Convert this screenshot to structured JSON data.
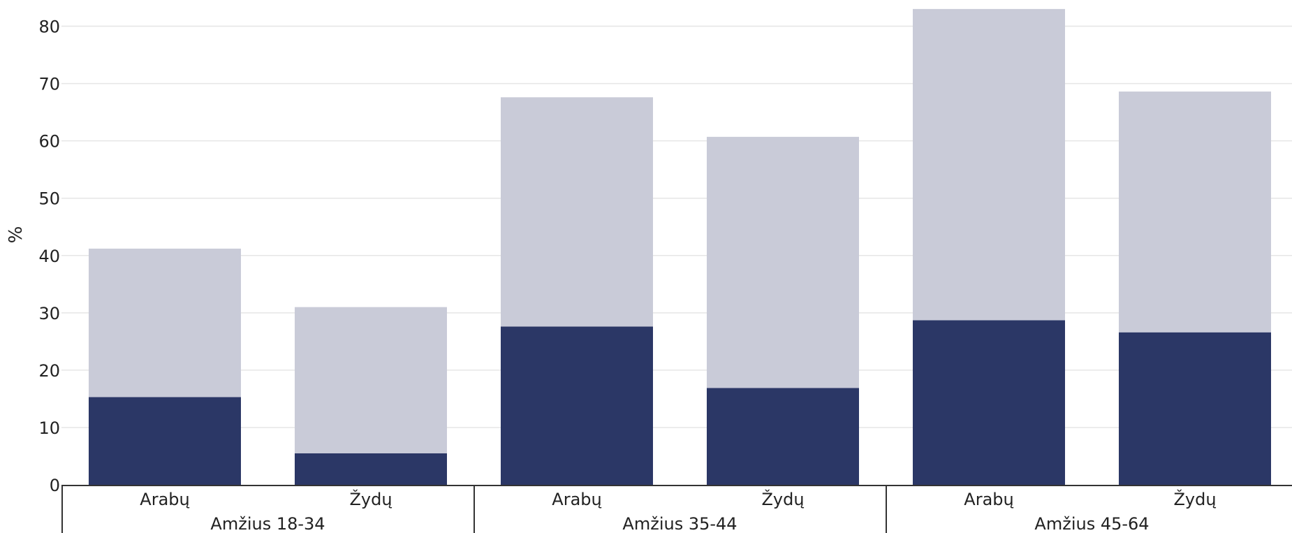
{
  "chart_data": {
    "type": "bar",
    "stacked": true,
    "ylabel": "%",
    "ylim": [
      0,
      83
    ],
    "yticks": [
      0,
      10,
      20,
      30,
      40,
      50,
      60,
      70,
      80
    ],
    "grid": true,
    "groups": [
      {
        "label": "Amžius 18-34",
        "categories": [
          "Arabų",
          "Žydų"
        ]
      },
      {
        "label": "Amžius 35-44",
        "categories": [
          "Arabų",
          "Žydų"
        ]
      },
      {
        "label": "Amžius 45-64",
        "categories": [
          "Arabų",
          "Žydų"
        ]
      }
    ],
    "categories": [
      "Arabų",
      "Žydų",
      "Arabų",
      "Žydų",
      "Arabų",
      "Žydų"
    ],
    "series": [
      {
        "color": "#2b3766",
        "values": [
          15.3,
          5.5,
          27.6,
          16.9,
          28.7,
          26.6
        ]
      },
      {
        "color": "#c9cbd8",
        "values": [
          25.9,
          25.5,
          40.0,
          43.8,
          54.3,
          42.0
        ]
      }
    ]
  }
}
